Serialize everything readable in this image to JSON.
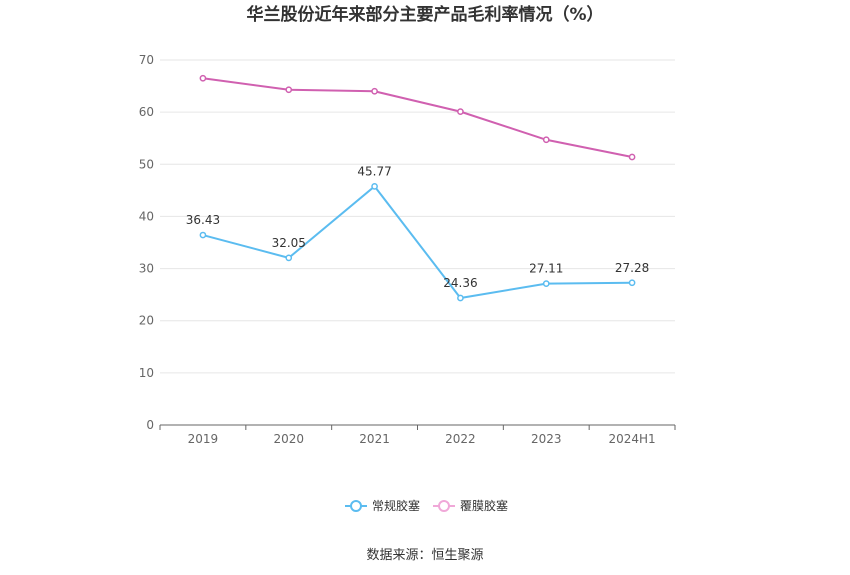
{
  "chart_data": {
    "type": "line",
    "title": "华兰股份近年来部分主要产品毛利率情况（%）",
    "categories": [
      "2019",
      "2020",
      "2021",
      "2022",
      "2023",
      "2024H1"
    ],
    "ylim": [
      0,
      70
    ],
    "yticks": [
      0,
      10,
      20,
      30,
      40,
      50,
      60,
      70
    ],
    "grid": true,
    "legend_position": "bottom",
    "series": [
      {
        "name": "常规胶塞",
        "color": "#5bbcf0",
        "values": [
          36.43,
          32.05,
          45.77,
          24.36,
          27.11,
          27.28
        ],
        "labels": [
          "36.43",
          "32.05",
          "45.77",
          "24.36",
          "27.11",
          "27.28"
        ]
      },
      {
        "name": "覆膜胶塞",
        "color": "#d060b0",
        "values": [
          66.5,
          64.3,
          64.0,
          60.1,
          54.7,
          51.4
        ],
        "labels": null
      }
    ],
    "source": "数据来源：恒生聚源"
  },
  "colors": {
    "grid": "#e6e6e6",
    "axis": "#666666",
    "legend_second_icon": "#f0a8d8"
  }
}
